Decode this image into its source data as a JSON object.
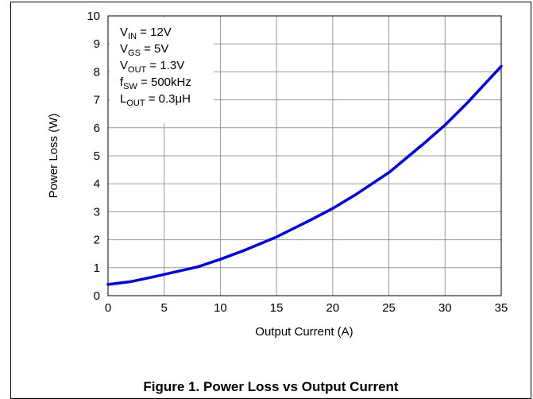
{
  "caption": "Figure 1. Power Loss vs Output Current",
  "chart_data": {
    "type": "line",
    "title": "",
    "xlabel": "Output Current (A)",
    "ylabel": "Power Loss (W)",
    "xlim": [
      0,
      35
    ],
    "ylim": [
      0,
      10
    ],
    "x_ticks": [
      "0",
      "5",
      "10",
      "15",
      "20",
      "25",
      "30",
      "35"
    ],
    "y_ticks": [
      "0",
      "1",
      "2",
      "3",
      "4",
      "5",
      "6",
      "7",
      "8",
      "9",
      "10"
    ],
    "grid": true,
    "line_color": "#0000ee",
    "annotations": [
      {
        "main": "V",
        "sub": "IN",
        "rest": " = 12V"
      },
      {
        "main": "V",
        "sub": "GS",
        "rest": " = 5V"
      },
      {
        "main": "V",
        "sub": "OUT",
        "rest": " = 1.3V"
      },
      {
        "main": "f",
        "sub": "SW",
        "rest": " = 500kHz"
      },
      {
        "main": "L",
        "sub": "OUT",
        "rest": " = 0.3μH"
      }
    ],
    "series": [
      {
        "x": [
          0,
          2,
          4,
          6,
          8,
          10,
          12,
          15,
          18,
          20,
          22,
          25,
          28,
          30,
          32,
          35
        ],
        "y": [
          0.4,
          0.5,
          0.67,
          0.85,
          1.03,
          1.3,
          1.6,
          2.1,
          2.7,
          3.12,
          3.6,
          4.4,
          5.4,
          6.1,
          6.9,
          8.2
        ]
      }
    ]
  }
}
